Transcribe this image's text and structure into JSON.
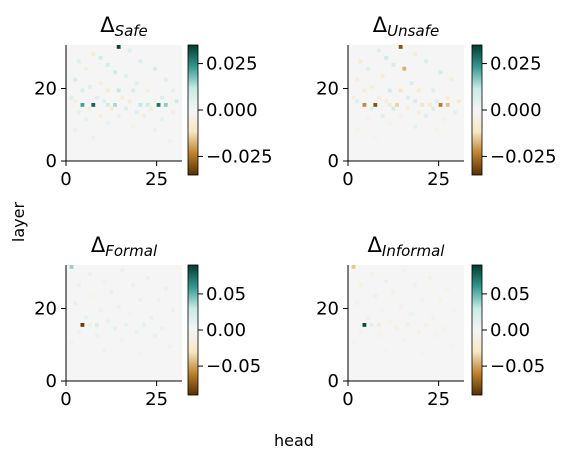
{
  "figure": {
    "xlabel": "head",
    "ylabel": "layer"
  },
  "chart_data": [
    {
      "type": "heatmap",
      "title_base": "Δ",
      "title_sub": "Safe",
      "x_ticks": [
        0,
        25
      ],
      "y_ticks": [
        0,
        20
      ],
      "xlim": [
        0,
        32
      ],
      "ylim": [
        0,
        32
      ],
      "colorbar": {
        "min": -0.035,
        "max": 0.035,
        "ticks": [
          0.025,
          0.0,
          -0.025
        ],
        "tick_labels": [
          "0.025",
          "0.000",
          "−0.025"
        ]
      },
      "cmap": [
        "#543005",
        "#bf812d",
        "#f6e8c3",
        "#f5f5f5",
        "#c7eae5",
        "#35978f",
        "#003c30"
      ],
      "cells": [
        [
          14,
          31,
          0.034
        ],
        [
          7,
          29,
          -0.008
        ],
        [
          17,
          30,
          0.006
        ],
        [
          9,
          28,
          0.01
        ],
        [
          3,
          27,
          0.006
        ],
        [
          20,
          27,
          0.007
        ],
        [
          11,
          26,
          0.009
        ],
        [
          5,
          25,
          -0.007
        ],
        [
          24,
          25,
          0.008
        ],
        [
          13,
          24,
          0.01
        ],
        [
          16,
          23,
          0.006
        ],
        [
          2,
          22,
          0.008
        ],
        [
          27,
          22,
          0.006
        ],
        [
          9,
          21,
          -0.006
        ],
        [
          19,
          21,
          0.005
        ],
        [
          6,
          20,
          0.006
        ],
        [
          4,
          19,
          0.007
        ],
        [
          11,
          19,
          -0.01
        ],
        [
          14,
          19,
          0.012
        ],
        [
          18,
          19,
          0.008
        ],
        [
          22,
          19,
          -0.006
        ],
        [
          29,
          19,
          0.005
        ],
        [
          1,
          17,
          0.006
        ],
        [
          8,
          17,
          0.006
        ],
        [
          15,
          17,
          -0.007
        ],
        [
          26,
          17,
          0.007
        ],
        [
          4,
          15,
          0.022
        ],
        [
          7,
          15,
          0.03
        ],
        [
          11,
          15,
          0.01
        ],
        [
          13,
          15,
          0.014
        ],
        [
          20,
          15,
          0.012
        ],
        [
          22,
          15,
          0.01
        ],
        [
          25,
          15,
          0.028
        ],
        [
          27,
          15,
          0.016
        ],
        [
          2,
          16,
          -0.006
        ],
        [
          10,
          16,
          0.006
        ],
        [
          17,
          16,
          -0.008
        ],
        [
          24,
          16,
          -0.006
        ],
        [
          30,
          16,
          0.01
        ],
        [
          6,
          14,
          -0.006
        ],
        [
          12,
          14,
          -0.009
        ],
        [
          16,
          14,
          0.006
        ],
        [
          23,
          14,
          -0.007
        ],
        [
          19,
          13,
          0.006
        ],
        [
          3,
          13,
          0.004
        ],
        [
          29,
          13,
          -0.005
        ],
        [
          9,
          12,
          -0.006
        ],
        [
          14,
          12,
          0.004
        ],
        [
          21,
          12,
          -0.006
        ],
        [
          5,
          11,
          0.004
        ],
        [
          26,
          11,
          0.004
        ],
        [
          11,
          10,
          0.003
        ],
        [
          18,
          9,
          -0.004
        ],
        [
          2,
          8,
          0.003
        ],
        [
          24,
          8,
          0.003
        ],
        [
          7,
          6,
          0.003
        ],
        [
          28,
          5,
          0.002
        ]
      ]
    },
    {
      "type": "heatmap",
      "title_base": "Δ",
      "title_sub": "Unsafe",
      "x_ticks": [
        0,
        25
      ],
      "y_ticks": [
        0,
        20
      ],
      "xlim": [
        0,
        32
      ],
      "ylim": [
        0,
        32
      ],
      "colorbar": {
        "min": -0.035,
        "max": 0.035,
        "ticks": [
          0.025,
          0.0,
          -0.025
        ],
        "tick_labels": [
          "0.025",
          "0.000",
          "−0.025"
        ]
      },
      "cmap": [
        "#543005",
        "#bf812d",
        "#f6e8c3",
        "#f5f5f5",
        "#c7eae5",
        "#35978f",
        "#003c30"
      ],
      "cells": [
        [
          14,
          31,
          -0.03
        ],
        [
          8,
          30,
          0.006
        ],
        [
          18,
          29,
          -0.007
        ],
        [
          10,
          28,
          0.01
        ],
        [
          3,
          27,
          -0.008
        ],
        [
          21,
          27,
          0.007
        ],
        [
          12,
          26,
          0.008
        ],
        [
          15,
          25,
          -0.018
        ],
        [
          5,
          25,
          0.006
        ],
        [
          25,
          24,
          0.009
        ],
        [
          9,
          23,
          -0.008
        ],
        [
          2,
          22,
          -0.006
        ],
        [
          28,
          22,
          -0.006
        ],
        [
          17,
          21,
          0.007
        ],
        [
          6,
          20,
          -0.006
        ],
        [
          4,
          19,
          -0.007
        ],
        [
          11,
          19,
          0.01
        ],
        [
          14,
          19,
          -0.012
        ],
        [
          19,
          19,
          -0.008
        ],
        [
          23,
          19,
          0.006
        ],
        [
          1,
          17,
          -0.006
        ],
        [
          8,
          17,
          -0.007
        ],
        [
          16,
          17,
          0.007
        ],
        [
          27,
          17,
          -0.007
        ],
        [
          4,
          15,
          -0.022
        ],
        [
          7,
          15,
          -0.03
        ],
        [
          11,
          15,
          -0.01
        ],
        [
          13,
          15,
          -0.014
        ],
        [
          20,
          15,
          -0.012
        ],
        [
          22,
          15,
          -0.01
        ],
        [
          25,
          15,
          -0.024
        ],
        [
          27,
          15,
          -0.016
        ],
        [
          2,
          16,
          0.006
        ],
        [
          10,
          16,
          -0.006
        ],
        [
          18,
          16,
          0.008
        ],
        [
          24,
          16,
          0.006
        ],
        [
          30,
          16,
          -0.01
        ],
        [
          6,
          14,
          0.006
        ],
        [
          12,
          14,
          0.009
        ],
        [
          16,
          14,
          -0.006
        ],
        [
          23,
          14,
          0.007
        ],
        [
          19,
          13,
          -0.006
        ],
        [
          29,
          13,
          0.005
        ],
        [
          9,
          12,
          0.006
        ],
        [
          14,
          12,
          -0.004
        ],
        [
          21,
          12,
          0.006
        ],
        [
          5,
          11,
          -0.004
        ],
        [
          26,
          11,
          -0.004
        ],
        [
          11,
          10,
          -0.003
        ],
        [
          18,
          9,
          0.004
        ],
        [
          2,
          8,
          -0.003
        ],
        [
          24,
          8,
          -0.003
        ],
        [
          7,
          6,
          -0.003
        ]
      ]
    },
    {
      "type": "heatmap",
      "title_base": "Δ",
      "title_sub": "Formal",
      "x_ticks": [
        0,
        25
      ],
      "y_ticks": [
        0,
        20
      ],
      "xlim": [
        0,
        32
      ],
      "ylim": [
        0,
        32
      ],
      "colorbar": {
        "min": -0.09,
        "max": 0.09,
        "ticks": [
          0.05,
          0.0,
          -0.05
        ],
        "tick_labels": [
          "0.05",
          "0.00",
          "−0.05"
        ]
      },
      "cmap": [
        "#543005",
        "#bf812d",
        "#f6e8c3",
        "#f5f5f5",
        "#c7eae5",
        "#35978f",
        "#003c30"
      ],
      "cells": [
        [
          1,
          31,
          0.04
        ],
        [
          6,
          29,
          0.01
        ],
        [
          15,
          30,
          0.008
        ],
        [
          22,
          28,
          0.012
        ],
        [
          10,
          27,
          -0.009
        ],
        [
          3,
          26,
          0.01
        ],
        [
          18,
          26,
          0.009
        ],
        [
          27,
          25,
          0.008
        ],
        [
          12,
          24,
          0.011
        ],
        [
          7,
          23,
          -0.008
        ],
        [
          20,
          22,
          0.01
        ],
        [
          25,
          22,
          0.008
        ],
        [
          2,
          21,
          0.009
        ],
        [
          14,
          20,
          0.01
        ],
        [
          9,
          19,
          0.008
        ],
        [
          29,
          19,
          0.007
        ],
        [
          17,
          18,
          -0.008
        ],
        [
          5,
          17,
          0.012
        ],
        [
          23,
          17,
          0.009
        ],
        [
          11,
          16,
          0.01
        ],
        [
          4,
          15,
          -0.085
        ],
        [
          8,
          15,
          0.02
        ],
        [
          6,
          15,
          -0.015
        ],
        [
          16,
          15,
          0.012
        ],
        [
          21,
          15,
          0.009
        ],
        [
          13,
          14,
          0.011
        ],
        [
          26,
          14,
          0.008
        ],
        [
          3,
          13,
          0.008
        ],
        [
          19,
          13,
          0.01
        ],
        [
          8,
          12,
          0.008
        ],
        [
          24,
          12,
          0.007
        ],
        [
          15,
          11,
          0.006
        ],
        [
          1,
          10,
          0.006
        ],
        [
          28,
          9,
          0.005
        ],
        [
          10,
          8,
          0.005
        ],
        [
          20,
          7,
          0.004
        ]
      ]
    },
    {
      "type": "heatmap",
      "title_base": "Δ",
      "title_sub": "Informal",
      "x_ticks": [
        0,
        25
      ],
      "y_ticks": [
        0,
        20
      ],
      "xlim": [
        0,
        32
      ],
      "ylim": [
        0,
        32
      ],
      "colorbar": {
        "min": -0.09,
        "max": 0.09,
        "ticks": [
          0.05,
          0.0,
          -0.05
        ],
        "tick_labels": [
          "0.05",
          "0.00",
          "−0.05"
        ]
      },
      "cmap": [
        "#543005",
        "#bf812d",
        "#f6e8c3",
        "#f5f5f5",
        "#c7eae5",
        "#35978f",
        "#003c30"
      ],
      "cells": [
        [
          1,
          31,
          -0.04
        ],
        [
          6,
          29,
          -0.01
        ],
        [
          15,
          30,
          -0.008
        ],
        [
          22,
          28,
          -0.012
        ],
        [
          10,
          27,
          0.009
        ],
        [
          3,
          26,
          -0.01
        ],
        [
          18,
          26,
          -0.009
        ],
        [
          27,
          25,
          -0.008
        ],
        [
          12,
          24,
          -0.011
        ],
        [
          7,
          23,
          0.008
        ],
        [
          20,
          22,
          -0.01
        ],
        [
          25,
          22,
          -0.008
        ],
        [
          2,
          21,
          -0.009
        ],
        [
          14,
          20,
          -0.01
        ],
        [
          9,
          19,
          -0.008
        ],
        [
          29,
          19,
          -0.007
        ],
        [
          17,
          18,
          0.008
        ],
        [
          5,
          17,
          -0.012
        ],
        [
          23,
          17,
          -0.009
        ],
        [
          11,
          16,
          -0.01
        ],
        [
          4,
          15,
          0.085
        ],
        [
          8,
          15,
          -0.02
        ],
        [
          6,
          15,
          0.015
        ],
        [
          16,
          15,
          -0.012
        ],
        [
          21,
          15,
          -0.009
        ],
        [
          13,
          14,
          -0.011
        ],
        [
          26,
          14,
          -0.008
        ],
        [
          3,
          13,
          -0.008
        ],
        [
          19,
          13,
          -0.01
        ],
        [
          8,
          12,
          -0.008
        ],
        [
          24,
          12,
          -0.007
        ],
        [
          15,
          11,
          -0.006
        ],
        [
          1,
          10,
          -0.006
        ],
        [
          28,
          9,
          -0.005
        ],
        [
          10,
          8,
          -0.005
        ],
        [
          20,
          7,
          -0.004
        ]
      ]
    }
  ]
}
